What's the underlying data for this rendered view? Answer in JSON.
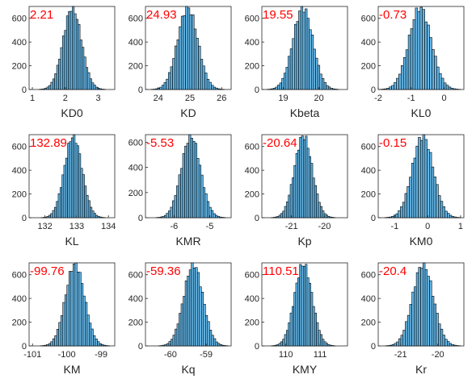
{
  "style": {
    "bar_fill": "#64b7e8",
    "bar_edge": "#000000",
    "label_color": "#ff0000",
    "axis_color": "#262626"
  },
  "chart_data": [
    {
      "type": "bar",
      "xlabel": "KD0",
      "mean_label": "2.21",
      "mean": 2.21,
      "sd": 0.28,
      "xlim": [
        0.9,
        3.5
      ],
      "xticks": [
        1,
        2,
        3
      ],
      "ylim": [
        0,
        700
      ],
      "yticks": [
        0,
        200,
        400,
        600
      ],
      "peak": 690
    },
    {
      "type": "bar",
      "xlabel": "KD",
      "mean_label": "24.93",
      "mean": 24.93,
      "sd": 0.32,
      "xlim": [
        23.6,
        26.3
      ],
      "xticks": [
        24,
        25,
        26
      ],
      "ylim": [
        0,
        700
      ],
      "yticks": [
        0,
        200,
        400,
        600
      ],
      "peak": 690
    },
    {
      "type": "bar",
      "xlabel": "Kbeta",
      "mean_label": "19.55",
      "mean": 19.55,
      "sd": 0.28,
      "xlim": [
        18.4,
        20.8
      ],
      "xticks": [
        19,
        20
      ],
      "ylim": [
        0,
        700
      ],
      "yticks": [
        0,
        200,
        400,
        600
      ],
      "peak": 690
    },
    {
      "type": "bar",
      "xlabel": "KL0",
      "mean_label": "-0.73",
      "mean": -0.73,
      "sd": 0.34,
      "xlim": [
        -2,
        0.6
      ],
      "xticks": [
        -2,
        -1,
        0
      ],
      "ylim": [
        0,
        700
      ],
      "yticks": [
        0,
        200,
        400,
        600
      ],
      "peak": 690
    },
    {
      "type": "bar",
      "xlabel": "KL",
      "mean_label": "132.89",
      "mean": 132.89,
      "sd": 0.28,
      "xlim": [
        131.5,
        134.2
      ],
      "xticks": [
        132,
        133,
        134
      ],
      "ylim": [
        0,
        700
      ],
      "yticks": [
        0,
        200,
        400,
        600
      ],
      "peak": 690
    },
    {
      "type": "bar",
      "xlabel": "KMR",
      "mean_label": "-5.53",
      "mean": -5.53,
      "sd": 0.27,
      "xlim": [
        -6.8,
        -4.4
      ],
      "xticks": [
        -6,
        -5
      ],
      "ylim": [
        0,
        660
      ],
      "yticks": [
        0,
        200,
        400,
        600
      ],
      "peak": 650
    },
    {
      "type": "bar",
      "xlabel": "Kp",
      "mean_label": "-20.64",
      "mean": -20.64,
      "sd": 0.27,
      "xlim": [
        -21.9,
        -19.3
      ],
      "xticks": [
        -21,
        -20
      ],
      "ylim": [
        0,
        700
      ],
      "yticks": [
        0,
        200,
        400,
        600
      ],
      "peak": 690
    },
    {
      "type": "bar",
      "xlabel": "KM0",
      "mean_label": "-0.15",
      "mean": -0.15,
      "sd": 0.32,
      "xlim": [
        -1.5,
        1.1
      ],
      "xticks": [
        -1,
        0,
        1
      ],
      "ylim": [
        0,
        700
      ],
      "yticks": [
        0,
        200,
        400,
        600
      ],
      "peak": 690
    },
    {
      "type": "bar",
      "xlabel": "KM",
      "mean_label": "-99.76",
      "mean": -99.76,
      "sd": 0.28,
      "xlim": [
        -101.1,
        -98.6
      ],
      "xticks": [
        -101,
        -100,
        -99
      ],
      "ylim": [
        0,
        700
      ],
      "yticks": [
        0,
        200,
        400,
        600
      ],
      "peak": 690
    },
    {
      "type": "bar",
      "xlabel": "Kq",
      "mean_label": "-59.36",
      "mean": -59.36,
      "sd": 0.27,
      "xlim": [
        -60.7,
        -58.3
      ],
      "xticks": [
        -60,
        -59
      ],
      "ylim": [
        0,
        700
      ],
      "yticks": [
        0,
        200,
        400,
        600
      ],
      "peak": 690
    },
    {
      "type": "bar",
      "xlabel": "KMY",
      "mean_label": "110.51",
      "mean": 110.51,
      "sd": 0.26,
      "xlim": [
        109.3,
        111.8
      ],
      "xticks": [
        110,
        111
      ],
      "ylim": [
        0,
        700
      ],
      "yticks": [
        0,
        200,
        400,
        600
      ],
      "peak": 690
    },
    {
      "type": "bar",
      "xlabel": "Kr",
      "mean_label": "-20.4",
      "mean": -20.4,
      "sd": 0.28,
      "xlim": [
        -21.6,
        -19.3
      ],
      "xticks": [
        -21,
        -20
      ],
      "ylim": [
        0,
        700
      ],
      "yticks": [
        0,
        200,
        400,
        600
      ],
      "peak": 690
    }
  ]
}
